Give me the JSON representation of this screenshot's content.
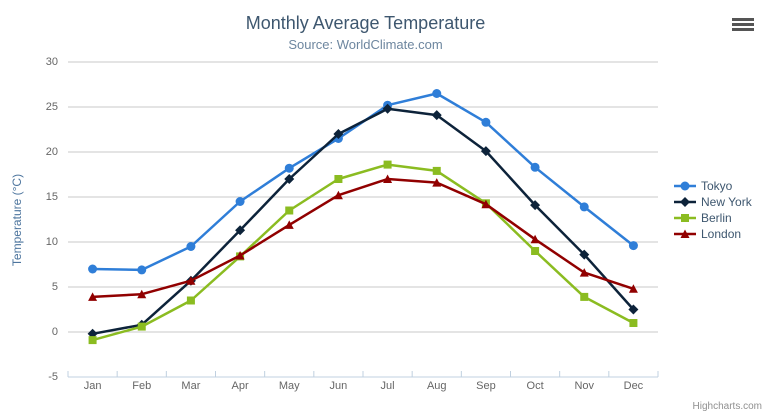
{
  "chart_data": {
    "type": "line",
    "title": "Monthly Average Temperature",
    "subtitle": "Source: WorldClimate.com",
    "ylabel": "Temperature (°C)",
    "categories": [
      "Jan",
      "Feb",
      "Mar",
      "Apr",
      "May",
      "Jun",
      "Jul",
      "Aug",
      "Sep",
      "Oct",
      "Nov",
      "Dec"
    ],
    "series": [
      {
        "name": "Tokyo",
        "color": "#2f7ed8",
        "marker": "circle",
        "values": [
          7.0,
          6.9,
          9.5,
          14.5,
          18.2,
          21.5,
          25.2,
          26.5,
          23.3,
          18.3,
          13.9,
          9.6
        ]
      },
      {
        "name": "New York",
        "color": "#0d233a",
        "marker": "diamond",
        "values": [
          -0.2,
          0.8,
          5.7,
          11.3,
          17.0,
          22.0,
          24.8,
          24.1,
          20.1,
          14.1,
          8.6,
          2.5
        ]
      },
      {
        "name": "Berlin",
        "color": "#8bbc21",
        "marker": "square",
        "values": [
          -0.9,
          0.6,
          3.5,
          8.4,
          13.5,
          17.0,
          18.6,
          17.9,
          14.3,
          9.0,
          3.9,
          1.0
        ]
      },
      {
        "name": "London",
        "color": "#910000",
        "marker": "triangle",
        "values": [
          3.9,
          4.2,
          5.7,
          8.5,
          11.9,
          15.2,
          17.0,
          16.6,
          14.2,
          10.3,
          6.6,
          4.8
        ]
      }
    ],
    "ylim": [
      -5,
      30
    ],
    "ytick_step": 5,
    "grid": true,
    "legend_position": "right"
  },
  "colors": {
    "title": "#3E576F",
    "subtitle": "#6D869F",
    "axis_labels": "#666666",
    "axis_title": "#4d759e",
    "gridline": "#C8C8C8",
    "axis_line": "#C0D0E0",
    "legend_text": "#3E576F",
    "credits": "#909090"
  },
  "credits": "Highcharts.com"
}
